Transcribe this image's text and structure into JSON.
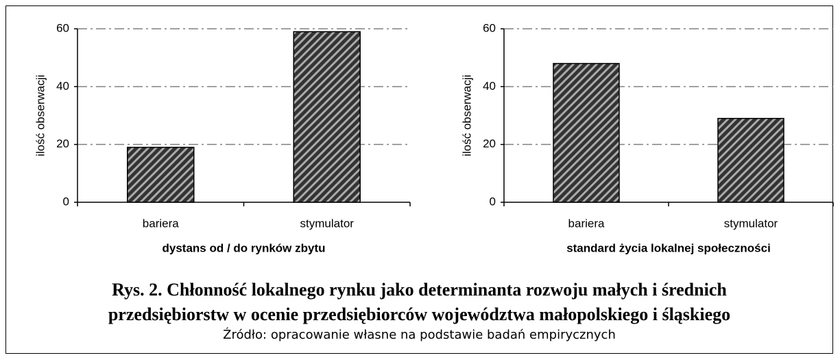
{
  "chart_data": [
    {
      "type": "bar",
      "ylabel": "ilość obserwacji",
      "xlabel": "dystans od / do rynków zbytu",
      "categories": [
        "bariera",
        "stymulator"
      ],
      "values": [
        19,
        59
      ],
      "ylim": [
        0,
        60
      ],
      "yticks": [
        0,
        20,
        40,
        60
      ],
      "grid": true
    },
    {
      "type": "bar",
      "ylabel": "ilość obserwacji",
      "xlabel": "standard życia lokalnej społeczności",
      "categories": [
        "bariera",
        "stymulator"
      ],
      "values": [
        48,
        29
      ],
      "ylim": [
        0,
        60
      ],
      "yticks": [
        0,
        20,
        40,
        60
      ],
      "grid": true
    }
  ],
  "caption": {
    "title_lines": [
      "Rys. 2. Chłonność lokalnego rynku jako determinanta rozwoju małych i średnich",
      "przedsiębiorstw w ocenie przedsiębiorców województwa małopolskiego i śląskiego"
    ],
    "source": "Źródło: opracowanie własne na podstawie badań empirycznych"
  }
}
